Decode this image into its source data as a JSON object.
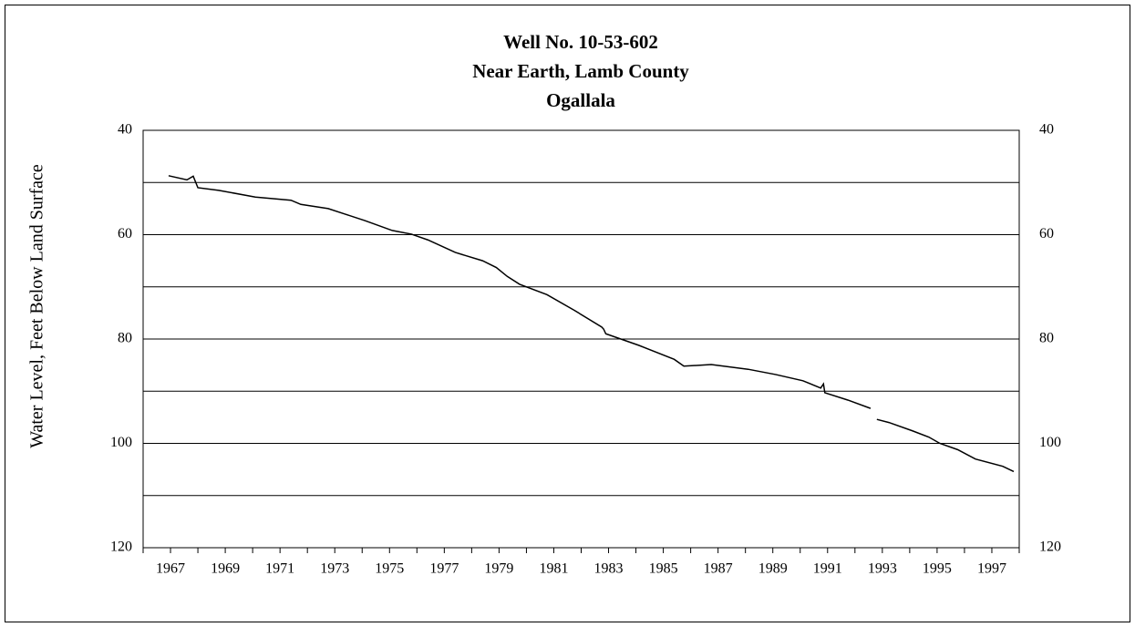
{
  "chart_data": {
    "type": "line",
    "title_lines": [
      "Well No. 10-53-602",
      "Near Earth, Lamb County",
      "Ogallala"
    ],
    "y_label": "Water Level, Feet Below Land Surface",
    "x": [
      1966.93,
      1967.6,
      1967.83,
      1968.0,
      1968.76,
      1970.1,
      1971.4,
      1971.76,
      1972.76,
      1973.4,
      1974.1,
      1975.1,
      1975.8,
      1976.4,
      1977.4,
      1978.4,
      1978.9,
      1979.3,
      1979.75,
      1980.75,
      1981.75,
      1982.75,
      1982.82,
      1982.9,
      1984.1,
      1985.4,
      1985.75,
      1986.75,
      1988.1,
      1989.1,
      1990.1,
      1990.75,
      1990.85,
      1990.9,
      1991.74,
      1992.57,
      1992.7,
      1992.8,
      1993.24,
      1994.1,
      1994.7,
      1995.1,
      1995.75,
      1996.4,
      1997.4,
      1997.8
    ],
    "values": [
      48.7,
      49.5,
      48.8,
      51,
      51.5,
      52.8,
      53.4,
      54.2,
      55,
      56.1,
      57.3,
      59.2,
      59.9,
      61,
      63.4,
      65,
      66.3,
      68,
      69.5,
      71.5,
      74.5,
      77.7,
      78.1,
      79,
      81.2,
      83.9,
      85.2,
      84.9,
      85.8,
      86.8,
      88,
      89.4,
      88.6,
      90.3,
      91.7,
      93.3,
      null,
      95.4,
      96,
      97.6,
      98.8,
      100,
      101.2,
      103,
      104.4,
      105.4
    ],
    "color": "#000000",
    "xlim": [
      1966,
      1998
    ],
    "xticks": [
      1967,
      1969,
      1971,
      1973,
      1975,
      1977,
      1979,
      1981,
      1983,
      1985,
      1987,
      1989,
      1991,
      1993,
      1995,
      1997
    ],
    "minor_xticks": [
      1966,
      1968,
      1970,
      1972,
      1974,
      1976,
      1978,
      1980,
      1982,
      1984,
      1986,
      1988,
      1990,
      1992,
      1994,
      1996,
      1998
    ],
    "ylim": [
      40,
      120
    ],
    "y_reversed": true,
    "yticks": [
      40,
      60,
      80,
      100,
      120
    ],
    "minor_yticks": [
      50,
      70,
      90,
      110
    ],
    "y2lim": [
      40,
      120
    ],
    "y2ticks": [
      40,
      60,
      80,
      100,
      120
    ],
    "grid": true
  }
}
